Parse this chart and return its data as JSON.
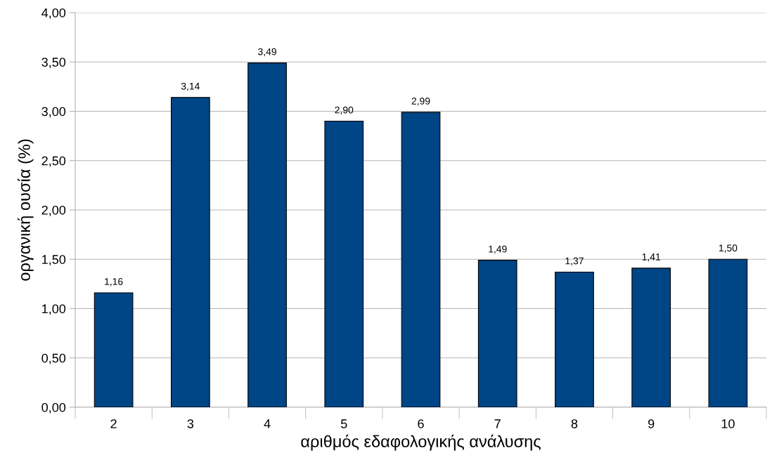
{
  "chart_data": {
    "type": "bar",
    "xlabel": "αριθμός εδαφολογικής ανάλυσης",
    "ylabel": "οργανική ουσία (%)",
    "categories": [
      "2",
      "3",
      "4",
      "5",
      "6",
      "7",
      "8",
      "9",
      "10"
    ],
    "values": [
      1.16,
      3.14,
      3.49,
      2.9,
      2.99,
      1.49,
      1.37,
      1.41,
      1.5
    ],
    "value_labels": [
      "1,16",
      "3,14",
      "3,49",
      "2,90",
      "2,99",
      "1,49",
      "1,37",
      "1,41",
      "1,50"
    ],
    "color": "#004586",
    "ylim": [
      0,
      4
    ],
    "yticks": [
      {
        "value": 0,
        "label": "0,00"
      },
      {
        "value": 0.5,
        "label": "0,50"
      },
      {
        "value": 1,
        "label": "1,00"
      },
      {
        "value": 1.5,
        "label": "1,50"
      },
      {
        "value": 2,
        "label": "2,00"
      },
      {
        "value": 2.5,
        "label": "2,50"
      },
      {
        "value": 3,
        "label": "3,00"
      },
      {
        "value": 3.5,
        "label": "3,50"
      },
      {
        "value": 4,
        "label": "4,00"
      }
    ],
    "grid": "y"
  }
}
